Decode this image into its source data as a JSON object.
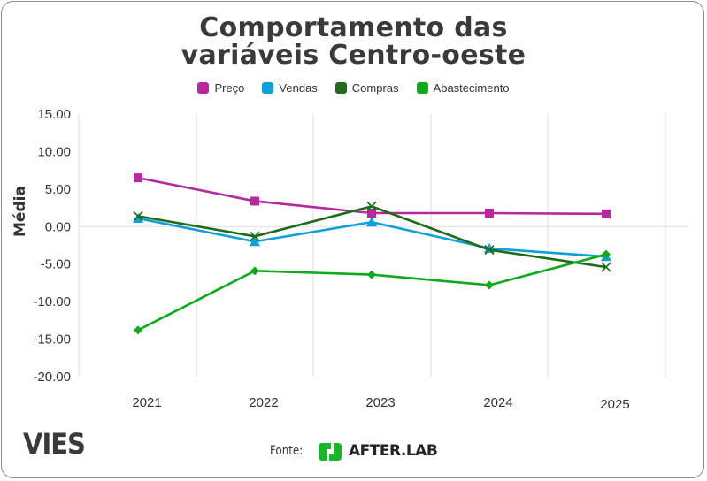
{
  "chart_data": {
    "type": "line",
    "title": "Comportamento das variáveis Centro-oeste",
    "title_lines": [
      "Comportamento das",
      "variáveis Centro-oeste"
    ],
    "xlabel": "",
    "ylabel": "Média",
    "categories": [
      "2021",
      "2022",
      "2023",
      "2024",
      "2025"
    ],
    "ylim": [
      -20,
      15
    ],
    "yticks": [
      15,
      10,
      5,
      0,
      -5,
      -10,
      -15,
      -20
    ],
    "ytick_labels": [
      "15.00",
      "10.00",
      "5.00",
      "0.00",
      "-5.00",
      "-10.00",
      "-15.00",
      "-20.00"
    ],
    "grid": "vertical + zero line",
    "legend_position": "top",
    "series": [
      {
        "name": "Preço",
        "color": "#b5289e",
        "marker": "square",
        "values": [
          6.5,
          3.4,
          1.8,
          1.8,
          1.7
        ]
      },
      {
        "name": "Vendas",
        "color": "#0fa0d8",
        "marker": "triangle",
        "values": [
          1.1,
          -2.0,
          0.6,
          -2.9,
          -4.0
        ]
      },
      {
        "name": "Compras",
        "color": "#1f6b1a",
        "marker": "x",
        "values": [
          1.4,
          -1.3,
          2.7,
          -3.1,
          -5.4
        ]
      },
      {
        "name": "Abastecimento",
        "color": "#0fa91c",
        "marker": "diamond",
        "values": [
          -13.8,
          -5.9,
          -6.4,
          -7.8,
          -3.7
        ]
      }
    ]
  },
  "footer": {
    "brand": "VIES",
    "source_label": "Fonte:",
    "source_brand": "AFTER.LAB",
    "source_brand_color": "#1bb52a"
  }
}
